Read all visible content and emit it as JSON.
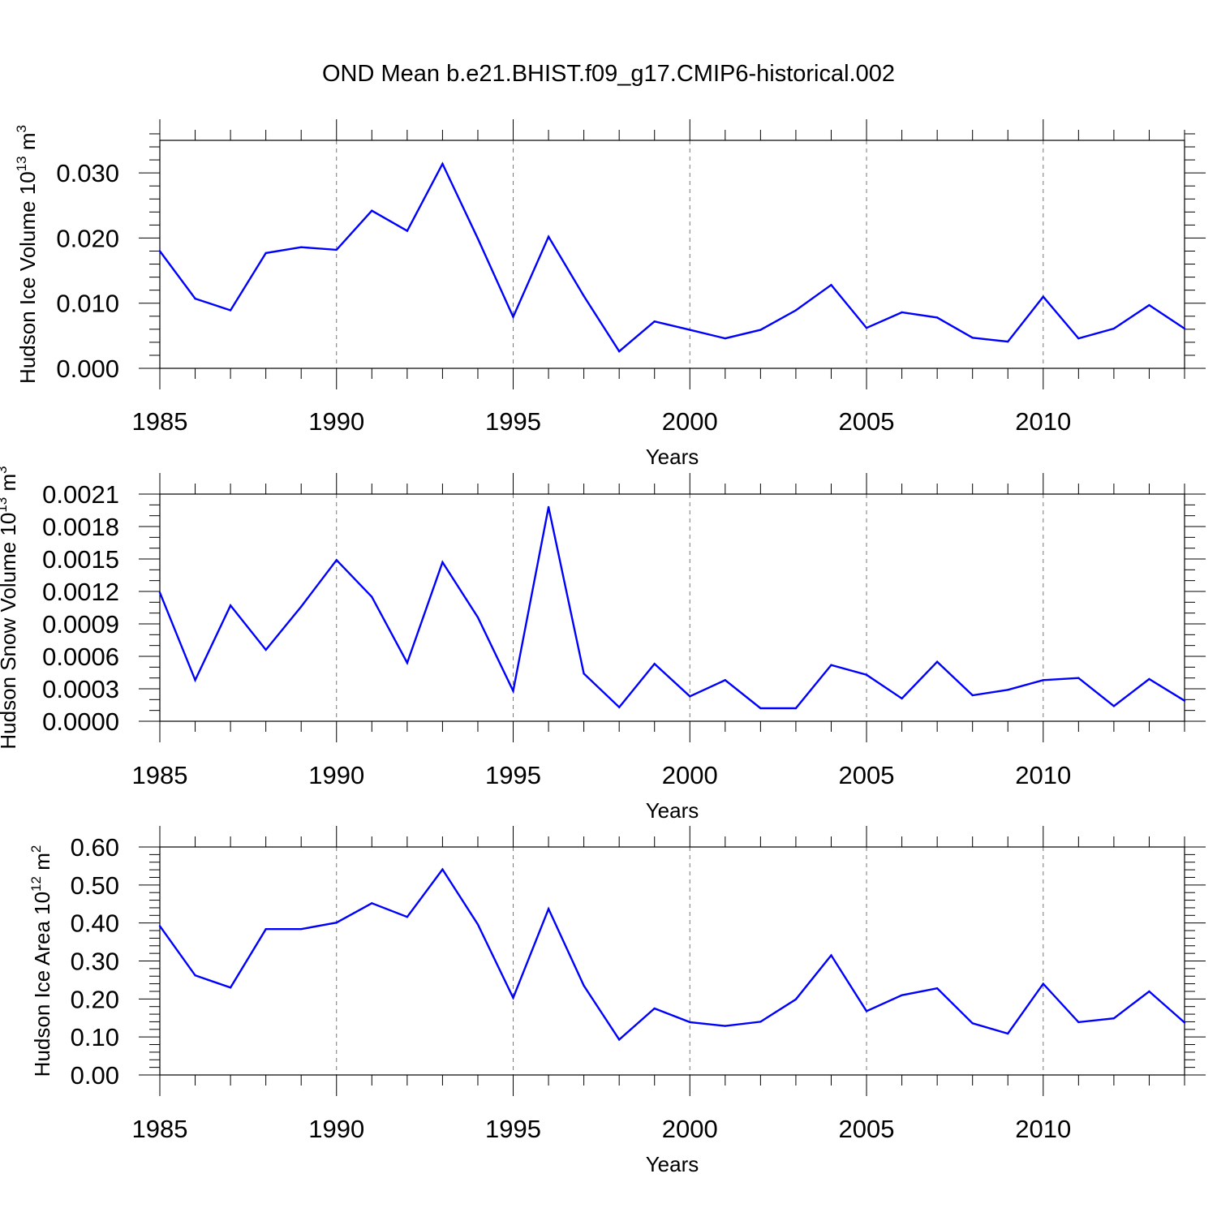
{
  "figure": {
    "title": "OND Mean b.e21.BHIST.f09_g17.CMIP6-historical.002"
  },
  "chart_data": [
    {
      "type": "line",
      "title": "",
      "xlabel": "Years",
      "ylabel": "Hudson Ice Volume 10",
      "ylabel_exp": "13",
      "ylabel_unit": " m",
      "ylabel_unit_exp": "3",
      "xlim": [
        1985,
        2014
      ],
      "ylim": [
        0,
        0.035
      ],
      "xticks": [
        1985,
        1990,
        1995,
        2000,
        2005,
        2010
      ],
      "xtick_labels": [
        "1985",
        "1990",
        "1995",
        "2000",
        "2005",
        "2010"
      ],
      "yticks": [
        0,
        0.01,
        0.02,
        0.03
      ],
      "ytick_labels": [
        "0.000",
        "0.010",
        "0.020",
        "0.030"
      ],
      "yminor_step": 0.002,
      "grid": "vertical dashed at major x ticks",
      "line_color": "#0000ff",
      "x": [
        1985,
        1986,
        1987,
        1988,
        1989,
        1990,
        1991,
        1992,
        1993,
        1994,
        1995,
        1996,
        1997,
        1998,
        1999,
        2000,
        2001,
        2002,
        2003,
        2004,
        2005,
        2006,
        2007,
        2008,
        2009,
        2010,
        2011,
        2012,
        2013,
        2014
      ],
      "values": [
        0.018,
        0.0107,
        0.0089,
        0.0177,
        0.0186,
        0.0182,
        0.0242,
        0.0211,
        0.0314,
        0.0199,
        0.0079,
        0.0202,
        0.0111,
        0.0026,
        0.0072,
        0.0059,
        0.0046,
        0.0059,
        0.0089,
        0.0128,
        0.0062,
        0.0086,
        0.0078,
        0.0047,
        0.0041,
        0.011,
        0.0046,
        0.0061,
        0.0097,
        0.0061
      ]
    },
    {
      "type": "line",
      "title": "",
      "xlabel": "Years",
      "ylabel": "Hudson Snow Volume 10",
      "ylabel_exp": "13",
      "ylabel_unit": " m",
      "ylabel_unit_exp": "3",
      "xlim": [
        1985,
        2014
      ],
      "ylim": [
        0,
        0.0021
      ],
      "xticks": [
        1985,
        1990,
        1995,
        2000,
        2005,
        2010
      ],
      "xtick_labels": [
        "1985",
        "1990",
        "1995",
        "2000",
        "2005",
        "2010"
      ],
      "yticks": [
        0,
        0.0003,
        0.0006,
        0.0009,
        0.0012,
        0.0015,
        0.0018,
        0.0021
      ],
      "ytick_labels": [
        "0.0000",
        "0.0003",
        "0.0006",
        "0.0009",
        "0.0012",
        "0.0015",
        "0.0018",
        "0.0021"
      ],
      "yminor_step": 0.0001,
      "grid": "vertical dashed at major x ticks",
      "line_color": "#0000ff",
      "x": [
        1985,
        1986,
        1987,
        1988,
        1989,
        1990,
        1991,
        1992,
        1993,
        1994,
        1995,
        1996,
        1997,
        1998,
        1999,
        2000,
        2001,
        2002,
        2003,
        2004,
        2005,
        2006,
        2007,
        2008,
        2009,
        2010,
        2011,
        2012,
        2013,
        2014
      ],
      "values": [
        0.00119,
        0.00038,
        0.00107,
        0.00066,
        0.00106,
        0.00149,
        0.00115,
        0.00054,
        0.00147,
        0.00096,
        0.00028,
        0.00198,
        0.00044,
        0.00013,
        0.00053,
        0.00023,
        0.00038,
        0.00012,
        0.00012,
        0.00052,
        0.00043,
        0.00021,
        0.00055,
        0.00024,
        0.00029,
        0.00038,
        0.0004,
        0.00014,
        0.00039,
        0.00019
      ]
    },
    {
      "type": "line",
      "title": "",
      "xlabel": "Years",
      "ylabel": "Hudson Ice Area 10",
      "ylabel_exp": "12",
      "ylabel_unit": " m",
      "ylabel_unit_exp": "2",
      "xlim": [
        1985,
        2014
      ],
      "ylim": [
        0,
        0.6
      ],
      "xticks": [
        1985,
        1990,
        1995,
        2000,
        2005,
        2010
      ],
      "xtick_labels": [
        "1985",
        "1990",
        "1995",
        "2000",
        "2005",
        "2010"
      ],
      "yticks": [
        0,
        0.1,
        0.2,
        0.3,
        0.4,
        0.5,
        0.6
      ],
      "ytick_labels": [
        "0.00",
        "0.10",
        "0.20",
        "0.30",
        "0.40",
        "0.50",
        "0.60"
      ],
      "yminor_step": 0.02,
      "grid": "vertical dashed at major x ticks",
      "line_color": "#0000ff",
      "x": [
        1985,
        1986,
        1987,
        1988,
        1989,
        1990,
        1991,
        1992,
        1993,
        1994,
        1995,
        1996,
        1997,
        1998,
        1999,
        2000,
        2001,
        2002,
        2003,
        2004,
        2005,
        2006,
        2007,
        2008,
        2009,
        2010,
        2011,
        2012,
        2013,
        2014
      ],
      "values": [
        0.392,
        0.262,
        0.23,
        0.384,
        0.384,
        0.401,
        0.452,
        0.416,
        0.541,
        0.396,
        0.203,
        0.437,
        0.235,
        0.093,
        0.175,
        0.139,
        0.129,
        0.14,
        0.199,
        0.315,
        0.168,
        0.21,
        0.228,
        0.136,
        0.109,
        0.24,
        0.139,
        0.149,
        0.22,
        0.138
      ]
    }
  ]
}
